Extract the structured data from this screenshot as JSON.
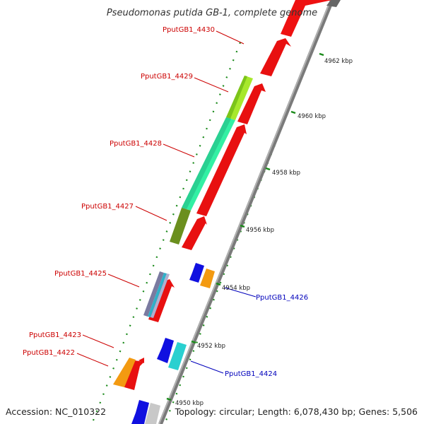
{
  "title": "Pseudomonas putida GB-1, complete genome",
  "accession": "Accession: NC_010322",
  "topology": "Topology: circular; Length: 6,078,430 bp; Genes: 5,506",
  "colors": {
    "forward_label": "#cc0000",
    "reverse_label": "#0000bb",
    "backbone": "#8a8a8a",
    "tick": "#1a8a1a"
  },
  "ticks": [
    "4962 kbp",
    "4960 kbp",
    "4958 kbp",
    "4956 kbp",
    "4954 kbp",
    "4952 kbp",
    "4950 kbp"
  ],
  "forward_labels": [
    "PputGB1_4430",
    "PputGB1_4429",
    "PputGB1_4428",
    "PputGB1_4427",
    "PputGB1_4425",
    "PputGB1_4423",
    "PputGB1_4422"
  ],
  "reverse_labels": [
    "PputGB1_4426",
    "PputGB1_4424"
  ]
}
